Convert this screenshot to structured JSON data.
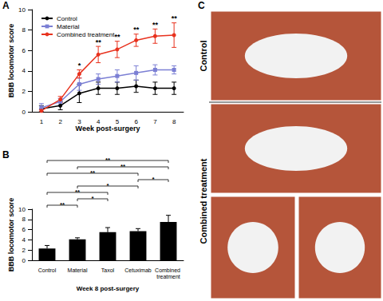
{
  "chart_data": [
    {
      "label": "A",
      "type": "line",
      "x_label": "Week post-surgery",
      "y_label": "BBB locomotor score",
      "categories": [
        "1",
        "2",
        "3",
        "4",
        "5",
        "6",
        "7",
        "8"
      ],
      "ylim": [
        0,
        10
      ],
      "yticks": [
        0,
        2,
        4,
        6,
        8,
        10
      ],
      "legend": "upper left",
      "series": [
        {
          "name": "Control",
          "color": "#000000",
          "marker": "circle",
          "values": [
            0.3,
            0.6,
            1.8,
            2.3,
            2.3,
            2.5,
            2.3,
            2.3
          ],
          "errors": [
            0.3,
            0.4,
            0.9,
            0.6,
            0.6,
            0.6,
            0.6,
            0.6
          ]
        },
        {
          "name": "Material",
          "color": "#7b7fd4",
          "marker": "square",
          "values": [
            0.4,
            1.0,
            2.7,
            3.2,
            3.5,
            3.8,
            4.1,
            4.1
          ],
          "errors": [
            0.4,
            0.3,
            0.6,
            0.5,
            0.6,
            0.7,
            0.5,
            0.4
          ]
        },
        {
          "name": "Combined treatment",
          "color": "#e8321e",
          "marker": "circle",
          "values": [
            0.1,
            1.2,
            3.7,
            5.6,
            6.1,
            7.0,
            7.4,
            7.5
          ],
          "errors": [
            0.1,
            0.3,
            0.4,
            0.8,
            0.8,
            0.6,
            0.7,
            1.2
          ]
        }
      ],
      "annotations": [
        {
          "category": "3",
          "series": "Combined treatment",
          "text": "*"
        },
        {
          "category": "4",
          "series": "Combined treatment",
          "text": "**"
        },
        {
          "category": "5",
          "series": "Combined treatment",
          "text": "**"
        },
        {
          "category": "6",
          "series": "Combined treatment",
          "text": "**"
        },
        {
          "category": "7",
          "series": "Combined treatment",
          "text": "**"
        },
        {
          "category": "8",
          "series": "Combined treatment",
          "text": "**"
        }
      ]
    },
    {
      "label": "B",
      "type": "bar",
      "x_label": "Week 8 post-surgery",
      "y_label": "BBB locomotor score",
      "categories": [
        "Control",
        "Material",
        "Taxol",
        "Cetuximab",
        "Combined treatment"
      ],
      "values": [
        2.3,
        4.1,
        5.5,
        5.7,
        7.5
      ],
      "errors": [
        0.6,
        0.3,
        0.9,
        0.5,
        1.3
      ],
      "color": "#000000",
      "ylim": [
        0,
        10
      ],
      "yticks": [
        0,
        2,
        4,
        6,
        8,
        10
      ],
      "comparisons": [
        {
          "from": "Control",
          "to": "Combined treatment",
          "text": "**"
        },
        {
          "from": "Material",
          "to": "Combined treatment",
          "text": "**"
        },
        {
          "from": "Control",
          "to": "Cetuximab",
          "text": "**"
        },
        {
          "from": "Cetuximab",
          "to": "Combined treatment",
          "text": "*"
        },
        {
          "from": "Material",
          "to": "Cetuximab",
          "text": "*"
        },
        {
          "from": "Control",
          "to": "Taxol",
          "text": "**"
        },
        {
          "from": "Material",
          "to": "Taxol",
          "text": "*"
        },
        {
          "from": "Control",
          "to": "Material",
          "text": "**"
        }
      ]
    }
  ],
  "photos": {
    "label": "C",
    "groups": [
      "Control",
      "Combined treatment"
    ]
  }
}
